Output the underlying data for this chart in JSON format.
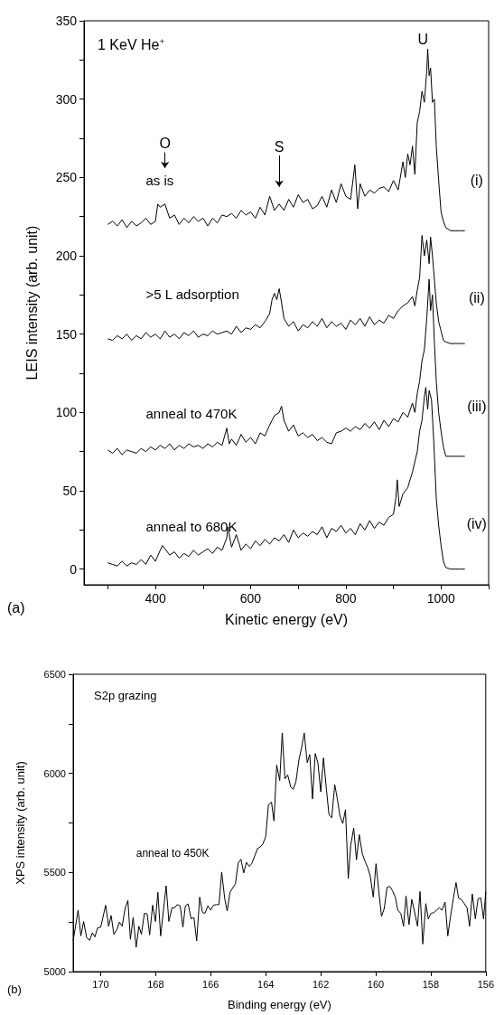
{
  "chart_data": [
    {
      "type": "line",
      "title": "1 KeV He$^{+}$",
      "xlabel": "Kinetic energy (eV)",
      "ylabel": "LEIS intensity (arb. unit)",
      "xlim": [
        250,
        1100
      ],
      "xticks": [
        {
          "value": 300,
          "label": null
        },
        400,
        {
          "value": 500,
          "label": null
        },
        600,
        {
          "value": 700,
          "label": null
        },
        800,
        {
          "value": 900,
          "label": null
        },
        1000,
        {
          "value": 1100,
          "label": null
        }
      ],
      "ylim": [
        -10,
        350
      ],
      "yticks": [
        0,
        {
          "value": 25,
          "label": null
        },
        50,
        {
          "value": 75,
          "label": null
        },
        100,
        {
          "value": 125,
          "label": null
        },
        150,
        {
          "value": 175,
          "label": null
        },
        200,
        {
          "value": 225,
          "label": null
        },
        250,
        {
          "value": 275,
          "label": null
        },
        300,
        {
          "value": 325,
          "label": null
        },
        350
      ],
      "grid": false,
      "annotations": [
        "(a)",
        "O",
        "S",
        "U",
        "(i)",
        "(ii)",
        "(iii)",
        "(iv)"
      ],
      "series": [
        {
          "name": "as is",
          "color": "#000000",
          "x": [
            300,
            310,
            320,
            330,
            340,
            350,
            360,
            370,
            380,
            390,
            400,
            405,
            410,
            420,
            430,
            440,
            450,
            460,
            470,
            480,
            490,
            500,
            510,
            520,
            530,
            540,
            550,
            560,
            570,
            580,
            590,
            600,
            610,
            620,
            630,
            640,
            650,
            660,
            670,
            680,
            690,
            700,
            710,
            720,
            730,
            740,
            750,
            760,
            770,
            780,
            790,
            800,
            810,
            819,
            825,
            830,
            840,
            850,
            860,
            870,
            880,
            890,
            900,
            910,
            920,
            925,
            930,
            935,
            940,
            945,
            950,
            955,
            960,
            965,
            970,
            972,
            975,
            978,
            982,
            986,
            990,
            995,
            1000,
            1005,
            1010,
            1020,
            1030,
            1040,
            1050
          ],
          "values": [
            220,
            222,
            219,
            223,
            218,
            222,
            219,
            221,
            224,
            220,
            222,
            233,
            231,
            233,
            224,
            226,
            220,
            224,
            221,
            225,
            222,
            224,
            219,
            224,
            221,
            226,
            225,
            227,
            224,
            229,
            226,
            228,
            224,
            231,
            226,
            238,
            229,
            233,
            229,
            236,
            231,
            239,
            234,
            236,
            230,
            232,
            238,
            231,
            242,
            234,
            246,
            238,
            236,
            258,
            230,
            246,
            238,
            242,
            240,
            243,
            244,
            241,
            248,
            242,
            260,
            250,
            265,
            258,
            270,
            252,
            285,
            292,
            305,
            298,
            318,
            332,
            315,
            320,
            298,
            300,
            270,
            248,
            228,
            222,
            218,
            216,
            216,
            216,
            216
          ]
        },
        {
          "name": ">5 L adsorption",
          "color": "#000000",
          "x": [
            300,
            310,
            320,
            330,
            340,
            350,
            360,
            370,
            380,
            390,
            400,
            410,
            420,
            430,
            440,
            450,
            460,
            470,
            480,
            490,
            500,
            510,
            520,
            530,
            540,
            550,
            560,
            570,
            580,
            590,
            600,
            610,
            620,
            630,
            640,
            645,
            650,
            655,
            660,
            665,
            670,
            680,
            690,
            700,
            710,
            720,
            730,
            740,
            750,
            760,
            770,
            780,
            790,
            800,
            810,
            820,
            830,
            840,
            850,
            860,
            870,
            880,
            890,
            900,
            910,
            920,
            930,
            940,
            945,
            950,
            955,
            960,
            965,
            970,
            975,
            978,
            982,
            986,
            990,
            995,
            1000,
            1005,
            1010,
            1020,
            1030,
            1040,
            1050
          ],
          "values": [
            147,
            146,
            149,
            147,
            150,
            146,
            149,
            147,
            151,
            148,
            150,
            147,
            152,
            148,
            150,
            147,
            151,
            149,
            152,
            148,
            150,
            149,
            152,
            150,
            151,
            152,
            150,
            155,
            151,
            154,
            153,
            156,
            154,
            158,
            163,
            172,
            176,
            172,
            179,
            170,
            160,
            155,
            158,
            152,
            156,
            154,
            158,
            155,
            160,
            154,
            158,
            155,
            157,
            153,
            159,
            156,
            160,
            155,
            161,
            156,
            159,
            157,
            162,
            160,
            165,
            168,
            170,
            174,
            168,
            178,
            186,
            213,
            200,
            210,
            195,
            212,
            200,
            185,
            170,
            158,
            152,
            146,
            145,
            144,
            144,
            144,
            144
          ]
        },
        {
          "name": "anneal to 470K",
          "color": "#000000",
          "x": [
            300,
            310,
            320,
            330,
            340,
            350,
            360,
            370,
            380,
            390,
            400,
            410,
            420,
            430,
            440,
            450,
            460,
            470,
            480,
            490,
            500,
            510,
            520,
            530,
            540,
            550,
            555,
            560,
            570,
            580,
            590,
            600,
            610,
            620,
            630,
            640,
            650,
            660,
            665,
            670,
            680,
            690,
            700,
            710,
            720,
            730,
            740,
            750,
            760,
            770,
            780,
            790,
            800,
            810,
            820,
            830,
            840,
            850,
            860,
            870,
            880,
            890,
            900,
            910,
            920,
            930,
            940,
            945,
            950,
            955,
            960,
            965,
            970,
            975,
            978,
            982,
            986,
            990,
            995,
            1000,
            1005,
            1010,
            1020,
            1030,
            1040,
            1050
          ],
          "values": [
            76,
            74,
            77,
            73,
            76,
            75,
            74,
            77,
            75,
            78,
            76,
            79,
            77,
            80,
            76,
            79,
            77,
            80,
            78,
            79,
            77,
            80,
            78,
            81,
            79,
            90,
            80,
            83,
            79,
            86,
            81,
            84,
            80,
            87,
            85,
            92,
            98,
            100,
            104,
            95,
            88,
            92,
            85,
            87,
            84,
            86,
            82,
            84,
            81,
            80,
            87,
            88,
            90,
            88,
            91,
            89,
            93,
            90,
            94,
            89,
            95,
            91,
            96,
            94,
            100,
            97,
            106,
            100,
            112,
            120,
            133,
            140,
            160,
            185,
            165,
            175,
            145,
            120,
            100,
            88,
            78,
            72,
            72,
            72,
            72,
            72
          ]
        },
        {
          "name": "anneal to 680K",
          "color": "#000000",
          "x": [
            300,
            310,
            320,
            330,
            340,
            350,
            360,
            370,
            380,
            390,
            400,
            410,
            415,
            420,
            430,
            440,
            450,
            460,
            470,
            480,
            490,
            500,
            510,
            520,
            530,
            540,
            550,
            552,
            560,
            570,
            580,
            590,
            600,
            610,
            620,
            630,
            640,
            650,
            660,
            670,
            680,
            690,
            700,
            710,
            720,
            730,
            740,
            750,
            760,
            770,
            780,
            790,
            800,
            810,
            820,
            830,
            840,
            850,
            860,
            870,
            880,
            890,
            900,
            905,
            908,
            912,
            920,
            930,
            940,
            950,
            955,
            960,
            965,
            968,
            972,
            975,
            980,
            985,
            990,
            995,
            1000,
            1005,
            1010,
            1020,
            1030,
            1040,
            1050
          ],
          "values": [
            4,
            3,
            2,
            5,
            2,
            4,
            3,
            6,
            3,
            9,
            5,
            12,
            15,
            13,
            9,
            11,
            7,
            10,
            8,
            12,
            9,
            11,
            13,
            10,
            14,
            12,
            20,
            27,
            14,
            22,
            12,
            16,
            13,
            18,
            15,
            19,
            16,
            20,
            18,
            22,
            17,
            25,
            20,
            23,
            21,
            24,
            22,
            27,
            20,
            26,
            24,
            28,
            23,
            26,
            22,
            29,
            25,
            31,
            26,
            30,
            28,
            33,
            35,
            45,
            57,
            40,
            48,
            52,
            62,
            75,
            88,
            95,
            110,
            116,
            102,
            114,
            108,
            80,
            45,
            28,
            15,
            5,
            1,
            0,
            0,
            0,
            0
          ]
        }
      ]
    },
    {
      "type": "line",
      "title": "S2p grazing",
      "xlabel": "Binding energy (eV)",
      "ylabel": "XPS intensity (arb. unit)",
      "xlim": [
        171,
        156
      ],
      "xticks": [
        170,
        168,
        166,
        164,
        162,
        160,
        158,
        156
      ],
      "ylim": [
        5000,
        6500
      ],
      "yticks": [
        5000,
        {
          "value": 5250,
          "label": null
        },
        5500,
        {
          "value": 5750,
          "label": null
        },
        6000,
        {
          "value": 6250,
          "label": null
        },
        6500
      ],
      "grid": false,
      "annotations": [
        "(b)"
      ],
      "series": [
        {
          "name": "anneal to 450K",
          "color": "#000000",
          "x": [
            171.0,
            170.82,
            170.72,
            170.62,
            170.51,
            170.4,
            170.3,
            170.21,
            170.11,
            170.0,
            169.91,
            169.82,
            169.71,
            169.62,
            169.52,
            169.41,
            169.32,
            169.22,
            169.11,
            169.01,
            168.92,
            168.82,
            168.71,
            168.61,
            168.52,
            168.41,
            168.31,
            168.22,
            168.11,
            168.01,
            167.92,
            167.82,
            167.71,
            167.62,
            167.52,
            167.41,
            167.31,
            167.22,
            167.11,
            167.01,
            166.92,
            166.82,
            166.71,
            166.61,
            166.51,
            166.4,
            166.3,
            166.21,
            166.1,
            166.0,
            165.9,
            165.8,
            165.7,
            165.6,
            165.49,
            165.4,
            165.3,
            165.1,
            165.0,
            164.9,
            164.8,
            164.7,
            164.6,
            164.51,
            164.4,
            164.3,
            164.2,
            164.1,
            164.0,
            163.9,
            163.79,
            163.7,
            163.6,
            163.49,
            163.4,
            163.3,
            163.2,
            163.09,
            163.0,
            162.9,
            162.79,
            162.7,
            162.6,
            162.49,
            162.4,
            162.3,
            162.2,
            162.1,
            162.0,
            161.9,
            161.79,
            161.7,
            161.6,
            161.49,
            161.4,
            161.3,
            161.2,
            161.1,
            161.0,
            160.91,
            160.8,
            160.7,
            160.6,
            160.49,
            160.39,
            160.3,
            160.2,
            160.09,
            159.99,
            159.9,
            159.79,
            159.69,
            159.59,
            159.49,
            159.39,
            159.29,
            159.2,
            159.09,
            158.99,
            158.9,
            158.79,
            158.69,
            158.59,
            158.48,
            158.39,
            158.29,
            158.18,
            158.09,
            157.99,
            157.89,
            157.79,
            157.69,
            157.59,
            157.48,
            157.38,
            157.29,
            157.18,
            157.08,
            156.99,
            156.89,
            156.78,
            156.68,
            156.59,
            156.49,
            156.38,
            156.28,
            156.18,
            156.08,
            156.0
          ],
          "values": [
            5155,
            5310,
            5180,
            5253,
            5172,
            5158,
            5196,
            5175,
            5221,
            5224,
            5278,
            5335,
            5229,
            5283,
            5188,
            5212,
            5250,
            5229,
            5319,
            5359,
            5163,
            5273,
            5123,
            5229,
            5188,
            5294,
            5291,
            5185,
            5335,
            5253,
            5400,
            5180,
            5319,
            5433,
            5253,
            5322,
            5322,
            5338,
            5332,
            5224,
            5332,
            5341,
            5266,
            5273,
            5155,
            5376,
            5299,
            5294,
            5332,
            5310,
            5335,
            5338,
            5338,
            5502,
            5368,
            5306,
            5400,
            5444,
            5547,
            5567,
            5498,
            5551,
            5531,
            5544,
            5583,
            5621,
            5629,
            5645,
            5681,
            5842,
            5855,
            5760,
            6042,
            5964,
            6204,
            5972,
            5992,
            5931,
            5920,
            5959,
            6070,
            6127,
            6204,
            6054,
            6095,
            5871,
            6100,
            6051,
            5907,
            6078,
            5915,
            5792,
            5776,
            5943,
            5874,
            5784,
            5747,
            5817,
            5469,
            5637,
            5724,
            5564,
            5691,
            5596,
            5556,
            5528,
            5482,
            5376,
            5544,
            5420,
            5278,
            5319,
            5425,
            5430,
            5408,
            5376,
            5310,
            5294,
            5229,
            5381,
            5237,
            5364,
            5302,
            5229,
            5404,
            5139,
            5343,
            5266,
            5294,
            5297,
            5310,
            5322,
            5310,
            5351,
            5180,
            5270,
            5368,
            5449,
            5371,
            5364,
            5343,
            5322,
            5229,
            5392,
            5266,
            5368,
            5371,
            5266,
            5404
          ]
        }
      ]
    }
  ]
}
